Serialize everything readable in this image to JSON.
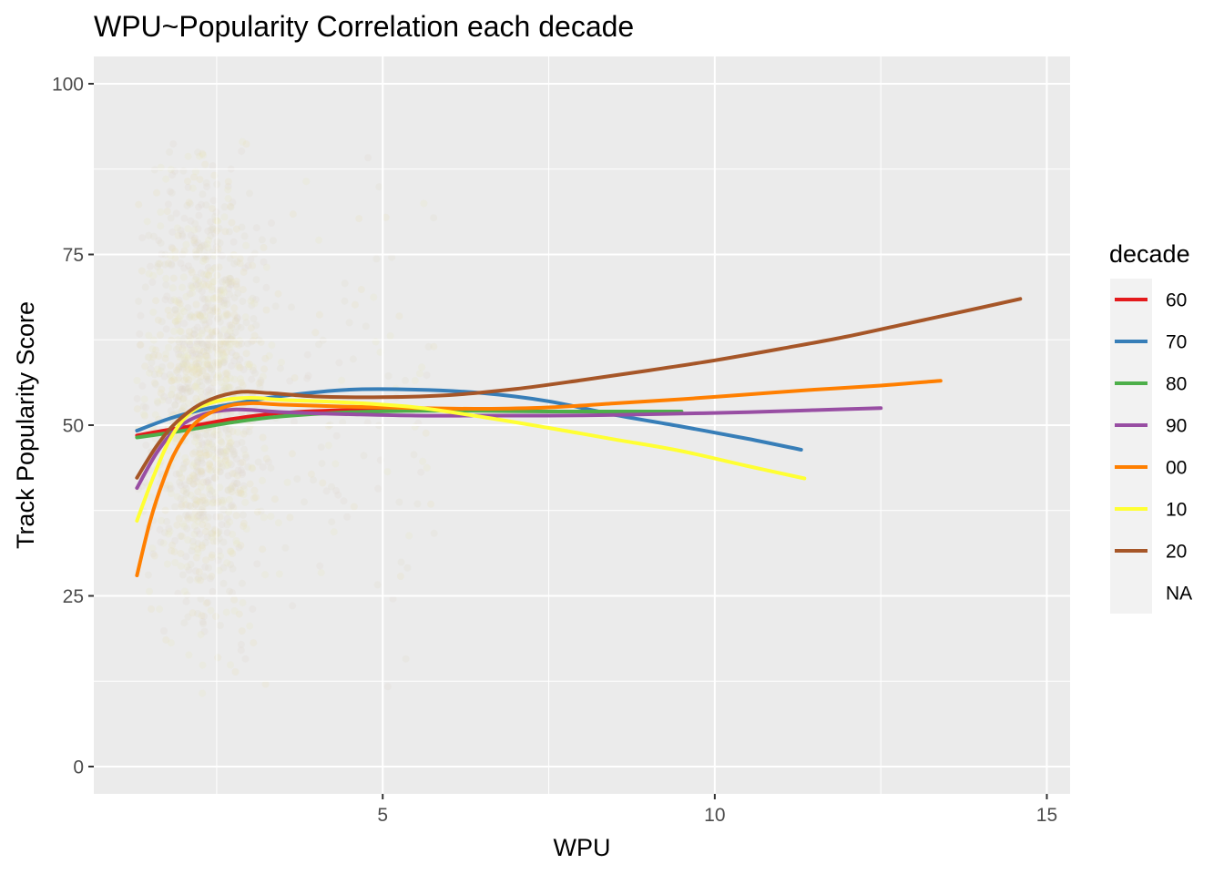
{
  "chart_data": {
    "type": "line",
    "title": "WPU~Popularity Correlation each decade",
    "xlabel": "WPU",
    "ylabel": "Track Popularity Score",
    "xlim": [
      0.65,
      15.35
    ],
    "ylim": [
      -4,
      104
    ],
    "xticks": [
      5,
      10,
      15
    ],
    "yticks": [
      0,
      25,
      50,
      75,
      100
    ],
    "grid": true,
    "legend": {
      "title": "decade",
      "position": "right"
    },
    "series": [
      {
        "name": "60",
        "color": "#E41A1C",
        "points": [
          [
            1.3,
            48.5
          ],
          [
            1.7,
            49.2
          ],
          [
            2.2,
            50.0
          ],
          [
            2.8,
            51.0
          ],
          [
            3.5,
            51.8
          ],
          [
            4.5,
            52.2
          ],
          [
            5.2,
            52.1
          ]
        ]
      },
      {
        "name": "70",
        "color": "#377EB8",
        "points": [
          [
            1.3,
            49.2
          ],
          [
            1.8,
            51.0
          ],
          [
            2.3,
            52.3
          ],
          [
            2.8,
            53.2
          ],
          [
            3.5,
            54.3
          ],
          [
            4.5,
            55.2
          ],
          [
            5.5,
            55.2
          ],
          [
            6.5,
            54.7
          ],
          [
            7.5,
            53.5
          ],
          [
            8.5,
            51.5
          ],
          [
            9.5,
            49.8
          ],
          [
            10.5,
            48.0
          ],
          [
            11.3,
            46.4
          ]
        ]
      },
      {
        "name": "80",
        "color": "#4DAF4A",
        "points": [
          [
            1.3,
            48.2
          ],
          [
            2.0,
            49.2
          ],
          [
            2.8,
            50.5
          ],
          [
            3.5,
            51.3
          ],
          [
            4.5,
            51.9
          ],
          [
            5.5,
            52.1
          ],
          [
            6.5,
            52.1
          ],
          [
            7.5,
            52.0
          ],
          [
            8.5,
            52.0
          ],
          [
            9.5,
            52.0
          ]
        ]
      },
      {
        "name": "90",
        "color": "#984EA3",
        "points": [
          [
            1.3,
            40.8
          ],
          [
            1.6,
            46.0
          ],
          [
            1.9,
            49.5
          ],
          [
            2.3,
            51.6
          ],
          [
            2.8,
            52.3
          ],
          [
            3.5,
            51.9
          ],
          [
            4.5,
            51.6
          ],
          [
            5.5,
            51.4
          ],
          [
            6.5,
            51.4
          ],
          [
            7.5,
            51.4
          ],
          [
            8.5,
            51.5
          ],
          [
            9.5,
            51.7
          ],
          [
            10.5,
            51.9
          ],
          [
            11.5,
            52.2
          ],
          [
            12.5,
            52.5
          ]
        ]
      },
      {
        "name": "00",
        "color": "#FF7F00",
        "points": [
          [
            1.3,
            28.0
          ],
          [
            1.5,
            36.0
          ],
          [
            1.7,
            42.0
          ],
          [
            1.9,
            46.5
          ],
          [
            2.2,
            50.5
          ],
          [
            2.6,
            52.6
          ],
          [
            3.0,
            53.2
          ],
          [
            3.5,
            53.0
          ],
          [
            4.5,
            52.7
          ],
          [
            5.5,
            52.5
          ],
          [
            6.5,
            52.4
          ],
          [
            7.5,
            52.6
          ],
          [
            8.5,
            53.2
          ],
          [
            9.5,
            53.8
          ],
          [
            10.5,
            54.5
          ],
          [
            11.5,
            55.2
          ],
          [
            12.5,
            55.8
          ],
          [
            13.4,
            56.5
          ]
        ]
      },
      {
        "name": "10",
        "color": "#FFFF33",
        "points": [
          [
            1.3,
            36.0
          ],
          [
            1.55,
            42.5
          ],
          [
            1.8,
            48.0
          ],
          [
            2.1,
            51.8
          ],
          [
            2.5,
            53.5
          ],
          [
            3.0,
            54.0
          ],
          [
            3.5,
            53.7
          ],
          [
            4.5,
            53.3
          ],
          [
            5.5,
            52.6
          ],
          [
            6.5,
            51.2
          ],
          [
            7.5,
            49.6
          ],
          [
            8.5,
            47.9
          ],
          [
            9.5,
            46.2
          ],
          [
            10.5,
            44.0
          ],
          [
            11.35,
            42.2
          ]
        ]
      },
      {
        "name": "20",
        "color": "#A65628",
        "points": [
          [
            1.3,
            42.3
          ],
          [
            1.6,
            47.0
          ],
          [
            1.9,
            50.5
          ],
          [
            2.3,
            53.3
          ],
          [
            2.8,
            54.8
          ],
          [
            3.3,
            54.7
          ],
          [
            4.0,
            54.2
          ],
          [
            5.0,
            54.1
          ],
          [
            6.0,
            54.4
          ],
          [
            7.0,
            55.3
          ],
          [
            8.0,
            56.6
          ],
          [
            9.0,
            58.0
          ],
          [
            10.0,
            59.5
          ],
          [
            11.0,
            61.2
          ],
          [
            12.0,
            63.0
          ],
          [
            13.0,
            65.1
          ],
          [
            14.0,
            67.2
          ],
          [
            14.6,
            68.5
          ]
        ]
      },
      {
        "name": "NA",
        "color": "#F2F2F2",
        "points": []
      }
    ]
  }
}
